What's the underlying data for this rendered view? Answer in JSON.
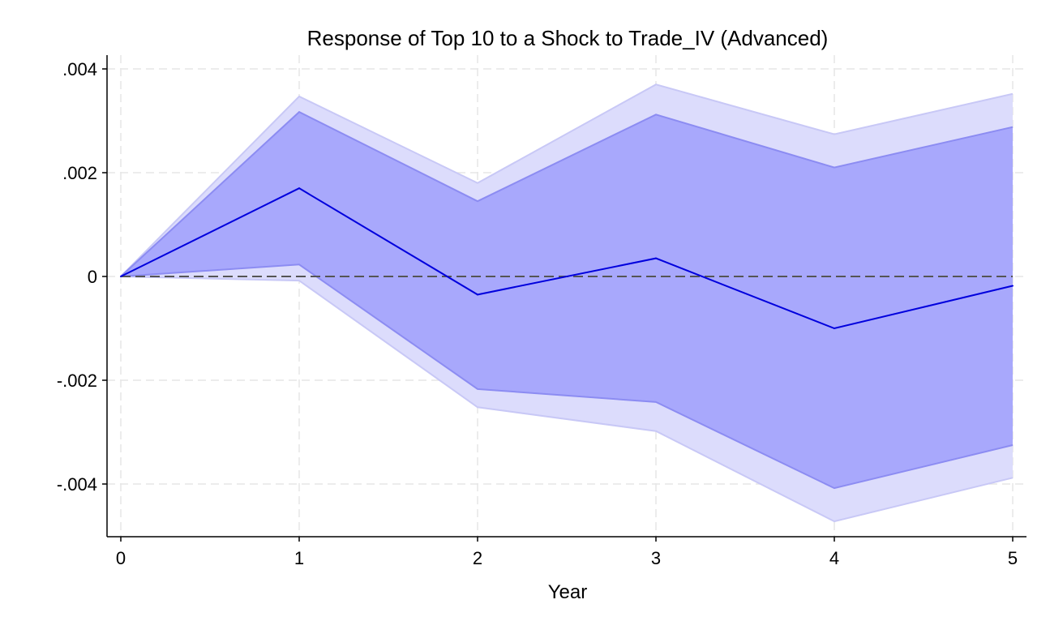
{
  "chart_data": {
    "type": "line",
    "title": "Response of Top 10 to a Shock to Trade_IV (Advanced)",
    "xlabel": "Year",
    "ylabel": "",
    "x": [
      0,
      1,
      2,
      3,
      4,
      5
    ],
    "xlim": [
      0,
      5
    ],
    "ylim": [
      -0.004,
      0.004
    ],
    "x_ticks": [
      {
        "value": 0,
        "label": "0"
      },
      {
        "value": 1,
        "label": "1"
      },
      {
        "value": 2,
        "label": "2"
      },
      {
        "value": 3,
        "label": "3"
      },
      {
        "value": 4,
        "label": "4"
      },
      {
        "value": 5,
        "label": "5"
      }
    ],
    "y_ticks": [
      {
        "value": 0.004,
        "label": ".004"
      },
      {
        "value": 0.002,
        "label": ".002"
      },
      {
        "value": 0,
        "label": "0"
      },
      {
        "value": -0.002,
        "label": "-.002"
      },
      {
        "value": -0.004,
        "label": "-.004"
      }
    ],
    "series": [
      {
        "values": [
          0,
          0.0017,
          -0.00035,
          0.00035,
          -0.001,
          -0.00018
        ]
      }
    ],
    "bands": [
      {
        "lower": [
          0,
          -8e-05,
          -0.00252,
          -0.00298,
          -0.00472,
          -0.00388
        ],
        "upper": [
          0,
          0.00347,
          0.0018,
          0.0037,
          0.00274,
          0.00352
        ],
        "color": "#dcdcfc"
      },
      {
        "lower": [
          0,
          0.00023,
          -0.00217,
          -0.00242,
          -0.00408,
          -0.00325
        ],
        "upper": [
          0,
          0.00317,
          0.00145,
          0.00312,
          0.0021,
          0.00288
        ],
        "color": "#a8a8fc"
      }
    ],
    "reference_line": {
      "y": 0,
      "style": "dashed",
      "color": "#555555"
    },
    "line_color": "#0000dd",
    "grid": true,
    "legend": "none"
  }
}
